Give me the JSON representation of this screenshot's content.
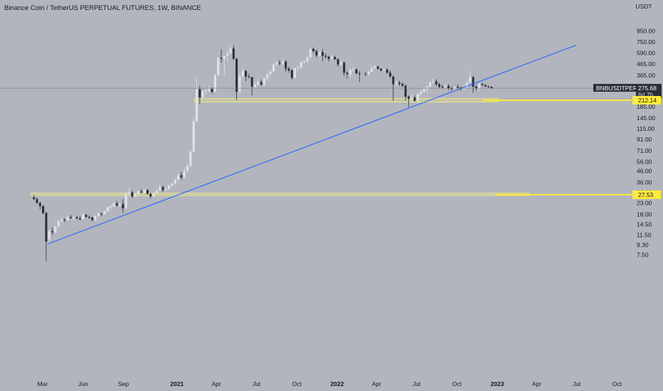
{
  "header": {
    "title": "Binance Coin / TetherUS PERPETUAL FUTURES, 1W, BINANCE"
  },
  "colors": {
    "background": "#b2b5be",
    "up": "#e0e3eb",
    "down": "#2a2e39",
    "trendline": "#2962ff",
    "zone": "#f5f07a",
    "level_badge": "#ffeb3b",
    "symbol_badge": "#2a2e39"
  },
  "chart_data": {
    "type": "candlestick",
    "title": "Binance Coin / TetherUS PERPETUAL FUTURES, 1W, BINANCE",
    "yscale": "log",
    "yunit": "USDT",
    "ylim": [
      6.2,
      1200
    ],
    "ytick_labels": [
      "950.00",
      "750.00",
      "590.00",
      "465.00",
      "365.00",
      "285.00",
      "225.00",
      "185.00",
      "145.00",
      "115.00",
      "91.00",
      "71.00",
      "56.00",
      "46.00",
      "36.00",
      "29.00",
      "23.00",
      "18.00",
      "14.50",
      "11.50",
      "9.30",
      "7.50"
    ],
    "xtick_labels": [
      "Mar",
      "Jun",
      "Sep",
      "2021",
      "Apr",
      "Jul",
      "Oct",
      "2022",
      "Apr",
      "Jul",
      "Oct",
      "2023",
      "Apr",
      "Jul",
      "Oct"
    ],
    "bold_xticks": [
      "2021",
      "2022",
      "2023"
    ],
    "xtick_dates": [
      "2020-03-01",
      "2020-06-01",
      "2020-09-01",
      "2021-01-01",
      "2021-04-01",
      "2021-07-01",
      "2021-10-01",
      "2022-01-01",
      "2022-04-01",
      "2022-07-01",
      "2022-10-01",
      "2023-01-01",
      "2023-04-01",
      "2023-07-01",
      "2023-10-01"
    ],
    "symbol": "BNBUSDTPERP",
    "last_price": "275.68",
    "countdown": "6d 7h",
    "levels": [
      {
        "price": 212.14,
        "label": "212.14",
        "zone": [
          204,
          220
        ],
        "zone_dates": [
          "2021-02-10",
          "2023-01-04"
        ]
      },
      {
        "price": 27.53,
        "label": "27.53",
        "zone": [
          27,
          28.4
        ],
        "zone_dates": [
          "2020-02-03",
          "2023-03-15"
        ]
      }
    ],
    "trendline": {
      "points": [
        {
          "date": "2020-03-13",
          "price": 9.5
        },
        {
          "date": "2023-06-30",
          "price": 700
        }
      ]
    },
    "candles": [
      [
        "2020-02-10",
        26,
        27.5,
        24.5,
        25
      ],
      [
        "2020-02-17",
        25,
        26,
        22.5,
        23
      ],
      [
        "2020-02-24",
        23,
        23.5,
        20,
        21.5
      ],
      [
        "2020-03-02",
        21.5,
        22,
        18,
        18.5
      ],
      [
        "2020-03-09",
        18.5,
        19,
        6.5,
        10
      ],
      [
        "2020-03-16",
        10.5,
        13,
        9.5,
        12.5
      ],
      [
        "2020-03-23",
        12.5,
        13.5,
        11.5,
        12.2
      ],
      [
        "2020-03-30",
        12.2,
        14,
        11.8,
        13.8
      ],
      [
        "2020-04-06",
        13.8,
        16,
        13.5,
        15.5
      ],
      [
        "2020-04-13",
        15.5,
        16.8,
        15,
        16
      ],
      [
        "2020-04-20",
        16,
        16.5,
        15.2,
        15.8
      ],
      [
        "2020-04-27",
        15.8,
        17.5,
        15.5,
        17
      ],
      [
        "2020-05-04",
        17,
        17.8,
        16.3,
        16.6
      ],
      [
        "2020-05-11",
        16.6,
        17.3,
        15.8,
        16.9
      ],
      [
        "2020-05-18",
        16.9,
        17.5,
        16.2,
        16.5
      ],
      [
        "2020-05-25",
        16.5,
        17.2,
        15.9,
        16.1
      ],
      [
        "2020-06-01",
        16.1,
        18.2,
        16,
        17.8
      ],
      [
        "2020-06-08",
        17.8,
        18.2,
        16.8,
        17
      ],
      [
        "2020-06-15",
        17,
        17.6,
        16.3,
        16.8
      ],
      [
        "2020-06-22",
        16.8,
        17.2,
        15.5,
        15.9
      ],
      [
        "2020-06-29",
        15.9,
        17.6,
        15.6,
        17.3
      ],
      [
        "2020-07-06",
        17.3,
        18.6,
        17,
        18.2
      ],
      [
        "2020-07-13",
        18.2,
        18.8,
        17.4,
        18
      ],
      [
        "2020-07-20",
        18,
        19.5,
        17.8,
        19.2
      ],
      [
        "2020-07-27",
        19.2,
        21.5,
        18.8,
        21
      ],
      [
        "2020-08-03",
        21,
        22,
        20,
        21.5
      ],
      [
        "2020-08-10",
        21.5,
        23.5,
        20.8,
        22.8
      ],
      [
        "2020-08-17",
        22.8,
        24,
        21.2,
        21.8
      ],
      [
        "2020-08-24",
        21.8,
        23.2,
        21.5,
        22.5
      ],
      [
        "2020-08-31",
        22.5,
        25,
        18.5,
        20.5
      ],
      [
        "2020-09-07",
        20.5,
        29,
        20,
        28
      ],
      [
        "2020-09-14",
        28,
        32,
        26.5,
        29
      ],
      [
        "2020-09-21",
        29,
        30,
        25.5,
        26.5
      ],
      [
        "2020-09-28",
        26.5,
        28.3,
        26,
        28
      ],
      [
        "2020-10-05",
        28,
        30,
        27,
        29.5
      ],
      [
        "2020-10-12",
        29.5,
        31,
        28.2,
        28.8
      ],
      [
        "2020-10-19",
        28.8,
        31,
        28.3,
        30.5
      ],
      [
        "2020-10-26",
        30.5,
        31,
        27.5,
        28
      ],
      [
        "2020-11-02",
        28,
        28.8,
        25.5,
        26.5
      ],
      [
        "2020-11-09",
        26.5,
        29,
        26,
        28.5
      ],
      [
        "2020-11-16",
        28.5,
        31,
        28,
        30.2
      ],
      [
        "2020-11-23",
        30.2,
        34,
        29.5,
        32.5
      ],
      [
        "2020-11-30",
        32.5,
        33.5,
        29.5,
        30.3
      ],
      [
        "2020-12-07",
        30.3,
        32,
        29.8,
        31.2
      ],
      [
        "2020-12-14",
        31.2,
        34,
        30.8,
        33.5
      ],
      [
        "2020-12-21",
        33.5,
        36,
        32.5,
        34.8
      ],
      [
        "2020-12-28",
        34.8,
        39,
        34.2,
        38
      ],
      [
        "2021-01-04",
        38,
        44,
        37,
        42
      ],
      [
        "2021-01-11",
        42,
        45,
        38,
        40
      ],
      [
        "2021-01-18",
        40,
        49,
        39,
        46
      ],
      [
        "2021-01-25",
        46,
        54,
        45,
        51
      ],
      [
        "2021-02-01",
        51,
        72,
        50,
        70
      ],
      [
        "2021-02-08",
        70,
        145,
        68,
        135
      ],
      [
        "2021-02-15",
        135,
        345,
        133,
        270
      ],
      [
        "2021-02-22",
        270,
        290,
        195,
        225
      ],
      [
        "2021-03-01",
        225,
        265,
        220,
        258
      ],
      [
        "2021-03-08",
        258,
        275,
        240,
        262
      ],
      [
        "2021-03-15",
        262,
        288,
        250,
        272
      ],
      [
        "2021-03-22",
        272,
        280,
        246,
        255
      ],
      [
        "2021-03-29",
        255,
        375,
        252,
        365
      ],
      [
        "2021-04-05",
        365,
        540,
        360,
        530
      ],
      [
        "2021-04-12",
        530,
        640,
        480,
        520
      ],
      [
        "2021-04-19",
        520,
        555,
        370,
        555
      ],
      [
        "2021-04-26",
        555,
        632,
        490,
        590
      ],
      [
        "2021-05-03",
        590,
        695,
        570,
        650
      ],
      [
        "2021-05-10",
        650,
        695,
        510,
        520
      ],
      [
        "2021-05-17",
        520,
        535,
        212,
        255
      ],
      [
        "2021-05-24",
        255,
        385,
        240,
        355
      ],
      [
        "2021-05-31",
        355,
        432,
        340,
        400
      ],
      [
        "2021-06-07",
        400,
        410,
        322,
        355
      ],
      [
        "2021-06-14",
        355,
        378,
        342,
        350
      ],
      [
        "2021-06-21",
        350,
        352,
        235,
        285
      ],
      [
        "2021-06-28",
        285,
        310,
        272,
        298
      ],
      [
        "2021-07-05",
        298,
        335,
        290,
        315
      ],
      [
        "2021-07-12",
        315,
        330,
        290,
        298
      ],
      [
        "2021-07-19",
        298,
        342,
        285,
        340
      ],
      [
        "2021-07-26",
        340,
        378,
        325,
        375
      ],
      [
        "2021-08-02",
        375,
        412,
        360,
        395
      ],
      [
        "2021-08-09",
        395,
        470,
        390,
        460
      ],
      [
        "2021-08-16",
        460,
        495,
        435,
        480
      ],
      [
        "2021-08-23",
        480,
        510,
        450,
        470
      ],
      [
        "2021-08-30",
        470,
        518,
        455,
        490
      ],
      [
        "2021-09-06",
        490,
        505,
        395,
        420
      ],
      [
        "2021-09-13",
        420,
        438,
        385,
        405
      ],
      [
        "2021-09-20",
        405,
        415,
        330,
        345
      ],
      [
        "2021-09-27",
        345,
        430,
        345,
        425
      ],
      [
        "2021-10-04",
        425,
        445,
        400,
        430
      ],
      [
        "2021-10-11",
        430,
        495,
        420,
        480
      ],
      [
        "2021-10-18",
        480,
        505,
        460,
        490
      ],
      [
        "2021-10-25",
        490,
        555,
        475,
        535
      ],
      [
        "2021-11-01",
        535,
        660,
        530,
        645
      ],
      [
        "2021-11-08",
        645,
        665,
        595,
        615
      ],
      [
        "2021-11-15",
        615,
        635,
        535,
        560
      ],
      [
        "2021-11-22",
        560,
        620,
        545,
        600
      ],
      [
        "2021-11-29",
        600,
        640,
        495,
        555
      ],
      [
        "2021-12-06",
        555,
        590,
        520,
        545
      ],
      [
        "2021-12-13",
        545,
        555,
        490,
        520
      ],
      [
        "2021-12-20",
        520,
        565,
        510,
        540
      ],
      [
        "2021-12-27",
        540,
        560,
        510,
        515
      ],
      [
        "2022-01-03",
        515,
        525,
        440,
        460
      ],
      [
        "2022-01-10",
        460,
        500,
        450,
        480
      ],
      [
        "2022-01-17",
        480,
        490,
        360,
        385
      ],
      [
        "2022-01-24",
        385,
        395,
        340,
        375
      ],
      [
        "2022-01-31",
        375,
        420,
        345,
        410
      ],
      [
        "2022-02-07",
        410,
        440,
        395,
        415
      ],
      [
        "2022-02-14",
        415,
        420,
        370,
        380
      ],
      [
        "2022-02-21",
        380,
        400,
        315,
        375
      ],
      [
        "2022-03-07",
        375,
        395,
        360,
        370
      ],
      [
        "2022-03-14",
        370,
        400,
        360,
        395
      ],
      [
        "2022-03-21",
        395,
        440,
        390,
        425
      ],
      [
        "2022-03-28",
        425,
        455,
        420,
        440
      ],
      [
        "2022-04-04",
        440,
        448,
        410,
        420
      ],
      [
        "2022-04-11",
        420,
        425,
        395,
        405
      ],
      [
        "2022-04-18",
        405,
        420,
        395,
        412
      ],
      [
        "2022-04-25",
        412,
        425,
        378,
        385
      ],
      [
        "2022-05-02",
        385,
        405,
        345,
        355
      ],
      [
        "2022-05-09",
        355,
        360,
        210,
        300
      ],
      [
        "2022-05-16",
        300,
        325,
        290,
        310
      ],
      [
        "2022-05-23",
        310,
        325,
        290,
        302
      ],
      [
        "2022-05-30",
        302,
        315,
        282,
        290
      ],
      [
        "2022-06-06",
        290,
        300,
        210,
        230
      ],
      [
        "2022-06-13",
        230,
        235,
        183,
        220
      ],
      [
        "2022-06-20",
        220,
        245,
        205,
        225
      ],
      [
        "2022-06-27",
        225,
        235,
        205,
        210
      ],
      [
        "2022-07-04",
        210,
        250,
        205,
        245
      ],
      [
        "2022-07-11",
        245,
        265,
        230,
        255
      ],
      [
        "2022-07-18",
        255,
        285,
        250,
        270
      ],
      [
        "2022-07-25",
        270,
        290,
        250,
        285
      ],
      [
        "2022-08-01",
        285,
        320,
        280,
        312
      ],
      [
        "2022-08-08",
        312,
        340,
        310,
        320
      ],
      [
        "2022-08-15",
        320,
        335,
        290,
        300
      ],
      [
        "2022-08-22",
        300,
        310,
        275,
        285
      ],
      [
        "2022-08-29",
        285,
        295,
        272,
        280
      ],
      [
        "2022-09-05",
        280,
        305,
        275,
        290
      ],
      [
        "2022-09-12",
        290,
        300,
        265,
        275
      ],
      [
        "2022-09-19",
        275,
        285,
        262,
        270
      ],
      [
        "2022-09-26",
        270,
        290,
        265,
        285
      ],
      [
        "2022-10-03",
        285,
        300,
        270,
        280
      ],
      [
        "2022-10-10",
        280,
        285,
        260,
        272
      ],
      [
        "2022-10-17",
        272,
        290,
        265,
        280
      ],
      [
        "2022-10-24",
        280,
        320,
        278,
        310
      ],
      [
        "2022-10-31",
        310,
        402,
        308,
        350
      ],
      [
        "2022-11-07",
        350,
        360,
        250,
        285
      ],
      [
        "2022-11-14",
        285,
        295,
        262,
        275
      ],
      [
        "2022-11-21",
        275,
        310,
        260,
        302
      ],
      [
        "2022-11-28",
        302,
        310,
        290,
        295
      ],
      [
        "2022-12-05",
        295,
        298,
        282,
        287
      ],
      [
        "2022-12-12",
        287,
        290,
        278,
        284
      ],
      [
        "2022-12-19",
        284,
        286,
        272,
        276
      ]
    ]
  }
}
